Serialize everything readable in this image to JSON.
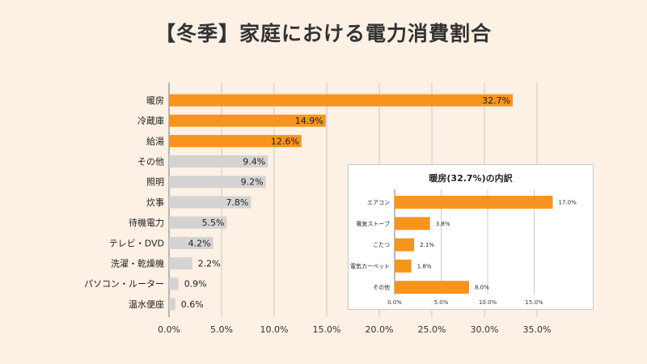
{
  "chart_data": [
    {
      "type": "bar",
      "orientation": "horizontal",
      "title": "【冬季】家庭における電力消費割合",
      "categories": [
        "暖房",
        "冷蔵庫",
        "給湯",
        "その他",
        "照明",
        "炊事",
        "待機電力",
        "テレビ・DVD",
        "洗濯・乾燥機",
        "パソコン・ルーター",
        "温水便座"
      ],
      "values": [
        32.7,
        14.9,
        12.6,
        9.4,
        9.2,
        7.8,
        5.5,
        4.2,
        2.2,
        0.9,
        0.6
      ],
      "value_labels": [
        "32.7%",
        "14.9%",
        "12.6%",
        "9.4%",
        "9.2%",
        "7.8%",
        "5.5%",
        "4.2%",
        "2.2%",
        "0.9%",
        "0.6%"
      ],
      "highlighted": [
        true,
        true,
        true,
        false,
        false,
        false,
        false,
        false,
        false,
        false,
        false
      ],
      "xlim": [
        0,
        37
      ],
      "x_ticks": [
        "0.0%",
        "5.0%",
        "10.0%",
        "15.0%",
        "20.0%",
        "25.0%",
        "30.0%",
        "35.0%"
      ],
      "grid": true
    },
    {
      "type": "bar",
      "orientation": "horizontal",
      "title": "暖房(32.7%)の内訳",
      "categories": [
        "エアコン",
        "電気ストーブ",
        "こたつ",
        "電気カーペット",
        "その他"
      ],
      "values": [
        17.0,
        3.8,
        2.1,
        1.8,
        8.0
      ],
      "value_labels": [
        "17.0%",
        "3.8%",
        "2.1%",
        "1.8%",
        "8.0%"
      ],
      "xlim": [
        0,
        20
      ],
      "x_ticks": [
        "0.0%",
        "5.0%",
        "10.0%",
        "15.0%"
      ],
      "grid": true
    }
  ],
  "colors": {
    "highlight": "#f7941d",
    "muted": "#d3d3d3",
    "background": "#fdf0e4",
    "grid": "#c9c9c9"
  }
}
